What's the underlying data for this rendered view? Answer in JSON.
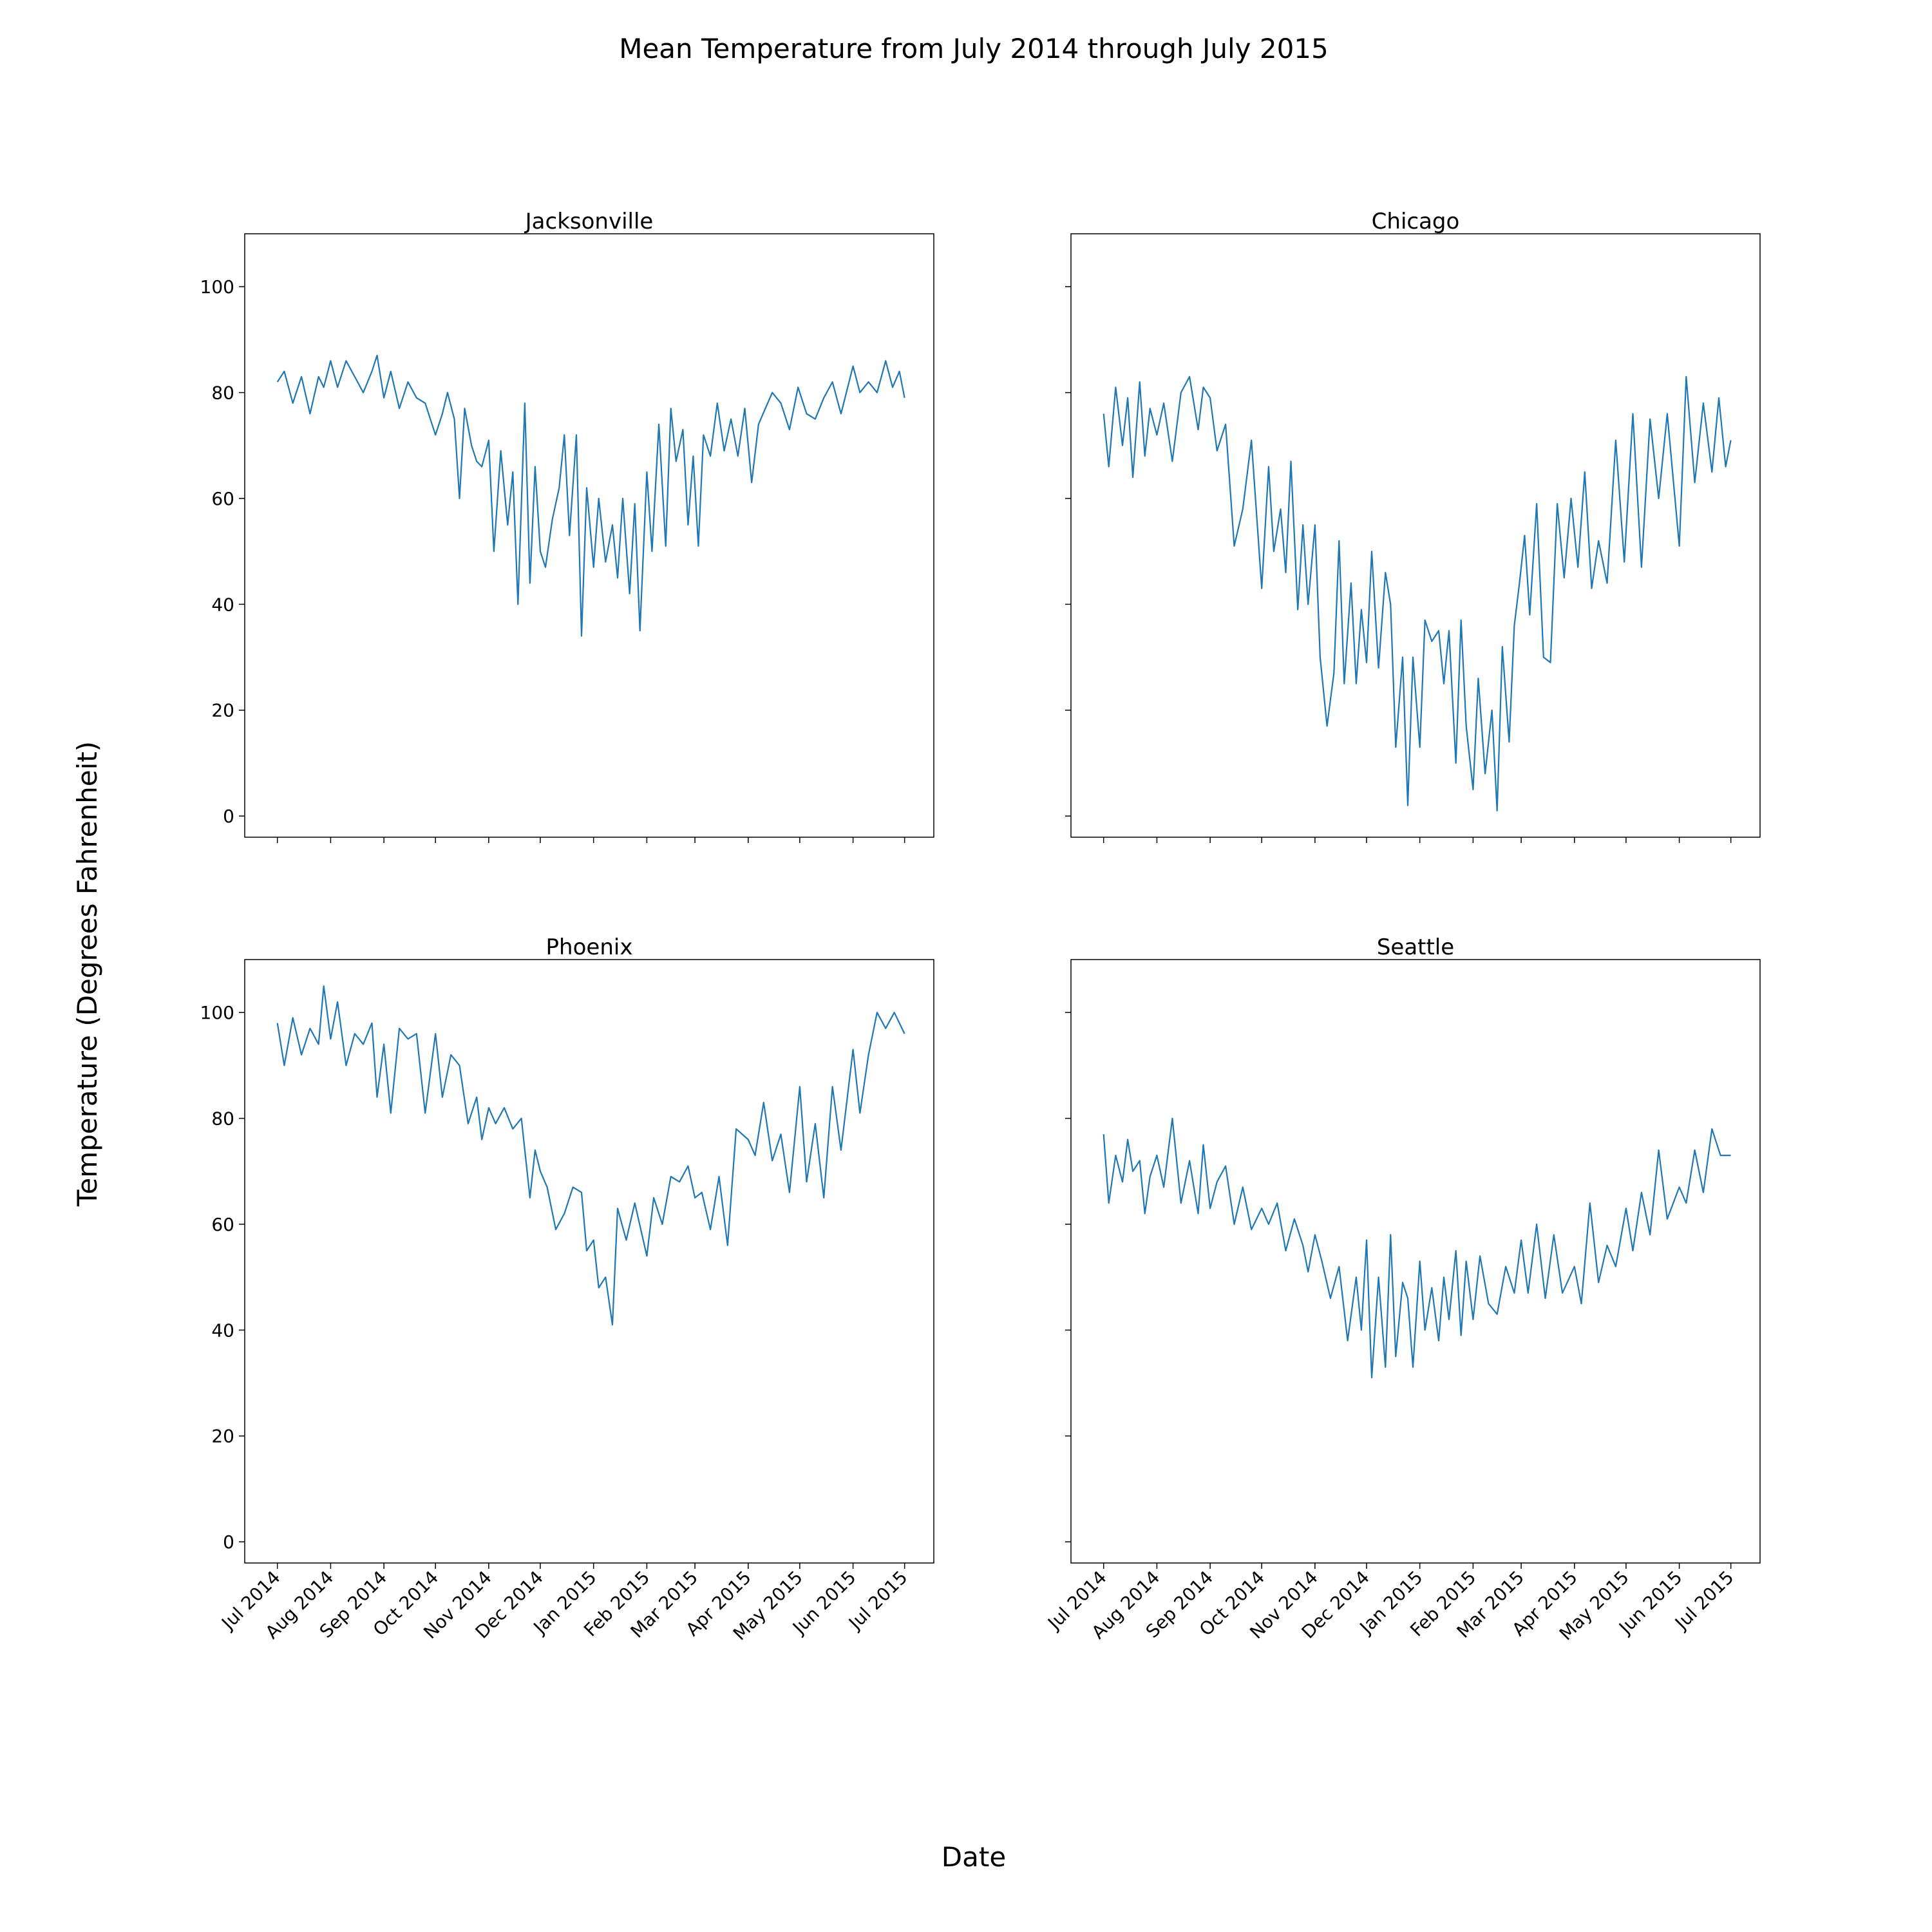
{
  "figure": {
    "title": "Mean Temperature from July 2014 through July 2015",
    "xlabel": "Date",
    "ylabel": "Temperature (Degrees Fahrenheit)"
  },
  "colors": {
    "line": "#1f77b4",
    "axes": "#000000"
  },
  "chart_data": {
    "type": "line",
    "layout": "2x2",
    "sharex": true,
    "sharey": true,
    "y_ticks": [
      0,
      20,
      40,
      60,
      80,
      100
    ],
    "ylim": [
      -4,
      110
    ],
    "xlim": [
      "2014-06-12",
      "2015-07-18"
    ],
    "x_ticks": [
      {
        "date": "2014-07-01",
        "label": "Jul 2014"
      },
      {
        "date": "2014-08-01",
        "label": "Aug 2014"
      },
      {
        "date": "2014-09-01",
        "label": "Sep 2014"
      },
      {
        "date": "2014-10-01",
        "label": "Oct 2014"
      },
      {
        "date": "2014-11-01",
        "label": "Nov 2014"
      },
      {
        "date": "2014-12-01",
        "label": "Dec 2014"
      },
      {
        "date": "2015-01-01",
        "label": "Jan 2015"
      },
      {
        "date": "2015-02-01",
        "label": "Feb 2015"
      },
      {
        "date": "2015-03-01",
        "label": "Mar 2015"
      },
      {
        "date": "2015-04-01",
        "label": "Apr 2015"
      },
      {
        "date": "2015-05-01",
        "label": "May 2015"
      },
      {
        "date": "2015-06-01",
        "label": "Jun 2015"
      },
      {
        "date": "2015-07-01",
        "label": "Jul 2015"
      }
    ],
    "panels": [
      {
        "title": "Jacksonville",
        "series": {
          "x": [
            "2014-07-01",
            "2014-07-05",
            "2014-07-10",
            "2014-07-15",
            "2014-07-20",
            "2014-07-25",
            "2014-07-28",
            "2014-08-01",
            "2014-08-05",
            "2014-08-10",
            "2014-08-15",
            "2014-08-20",
            "2014-08-25",
            "2014-08-28",
            "2014-09-01",
            "2014-09-05",
            "2014-09-10",
            "2014-09-15",
            "2014-09-20",
            "2014-09-25",
            "2014-10-01",
            "2014-10-05",
            "2014-10-08",
            "2014-10-12",
            "2014-10-15",
            "2014-10-18",
            "2014-10-22",
            "2014-10-25",
            "2014-10-28",
            "2014-11-01",
            "2014-11-04",
            "2014-11-08",
            "2014-11-12",
            "2014-11-15",
            "2014-11-18",
            "2014-11-22",
            "2014-11-25",
            "2014-11-28",
            "2014-12-01",
            "2014-12-04",
            "2014-12-08",
            "2014-12-12",
            "2014-12-15",
            "2014-12-18",
            "2014-12-22",
            "2014-12-25",
            "2014-12-28",
            "2015-01-01",
            "2015-01-04",
            "2015-01-08",
            "2015-01-12",
            "2015-01-15",
            "2015-01-18",
            "2015-01-22",
            "2015-01-25",
            "2015-01-28",
            "2015-02-01",
            "2015-02-04",
            "2015-02-08",
            "2015-02-12",
            "2015-02-15",
            "2015-02-18",
            "2015-02-22",
            "2015-02-25",
            "2015-02-28",
            "2015-03-03",
            "2015-03-06",
            "2015-03-10",
            "2015-03-14",
            "2015-03-18",
            "2015-03-22",
            "2015-03-26",
            "2015-03-30",
            "2015-04-03",
            "2015-04-07",
            "2015-04-11",
            "2015-04-15",
            "2015-04-20",
            "2015-04-25",
            "2015-04-30",
            "2015-05-05",
            "2015-05-10",
            "2015-05-15",
            "2015-05-20",
            "2015-05-25",
            "2015-06-01",
            "2015-06-05",
            "2015-06-10",
            "2015-06-15",
            "2015-06-20",
            "2015-06-24",
            "2015-06-28",
            "2015-07-01"
          ],
          "y": [
            82,
            84,
            78,
            83,
            76,
            83,
            81,
            86,
            81,
            86,
            83,
            80,
            84,
            87,
            79,
            84,
            77,
            82,
            79,
            78,
            72,
            76,
            80,
            75,
            60,
            77,
            70,
            67,
            66,
            71,
            50,
            69,
            55,
            65,
            40,
            78,
            44,
            66,
            50,
            47,
            56,
            62,
            72,
            53,
            72,
            34,
            62,
            47,
            60,
            48,
            55,
            45,
            60,
            42,
            59,
            35,
            65,
            50,
            74,
            51,
            77,
            67,
            73,
            55,
            68,
            51,
            72,
            68,
            78,
            69,
            75,
            68,
            77,
            63,
            74,
            77,
            80,
            78,
            73,
            81,
            76,
            75,
            79,
            82,
            76,
            85,
            80,
            82,
            80,
            86,
            81,
            84,
            79
          ]
        }
      },
      {
        "title": "Chicago",
        "series": {
          "x": [
            "2014-07-01",
            "2014-07-04",
            "2014-07-08",
            "2014-07-12",
            "2014-07-15",
            "2014-07-18",
            "2014-07-22",
            "2014-07-25",
            "2014-07-28",
            "2014-08-01",
            "2014-08-05",
            "2014-08-10",
            "2014-08-15",
            "2014-08-20",
            "2014-08-25",
            "2014-08-28",
            "2014-09-01",
            "2014-09-05",
            "2014-09-10",
            "2014-09-15",
            "2014-09-20",
            "2014-09-25",
            "2014-10-01",
            "2014-10-05",
            "2014-10-08",
            "2014-10-12",
            "2014-10-15",
            "2014-10-18",
            "2014-10-22",
            "2014-10-25",
            "2014-10-28",
            "2014-11-01",
            "2014-11-04",
            "2014-11-08",
            "2014-11-12",
            "2014-11-15",
            "2014-11-18",
            "2014-11-22",
            "2014-11-25",
            "2014-11-28",
            "2014-12-01",
            "2014-12-04",
            "2014-12-08",
            "2014-12-12",
            "2014-12-15",
            "2014-12-18",
            "2014-12-22",
            "2014-12-25",
            "2014-12-28",
            "2015-01-01",
            "2015-01-04",
            "2015-01-08",
            "2015-01-12",
            "2015-01-15",
            "2015-01-18",
            "2015-01-22",
            "2015-01-25",
            "2015-01-28",
            "2015-02-01",
            "2015-02-04",
            "2015-02-08",
            "2015-02-12",
            "2015-02-15",
            "2015-02-18",
            "2015-02-22",
            "2015-02-25",
            "2015-02-28",
            "2015-03-03",
            "2015-03-06",
            "2015-03-10",
            "2015-03-14",
            "2015-03-18",
            "2015-03-22",
            "2015-03-26",
            "2015-03-30",
            "2015-04-03",
            "2015-04-07",
            "2015-04-11",
            "2015-04-15",
            "2015-04-20",
            "2015-04-25",
            "2015-04-30",
            "2015-05-05",
            "2015-05-10",
            "2015-05-15",
            "2015-05-20",
            "2015-05-25",
            "2015-06-01",
            "2015-06-05",
            "2015-06-10",
            "2015-06-15",
            "2015-06-20",
            "2015-06-24",
            "2015-06-28",
            "2015-07-01"
          ],
          "y": [
            76,
            66,
            81,
            70,
            79,
            64,
            82,
            68,
            77,
            72,
            78,
            67,
            80,
            83,
            73,
            81,
            79,
            69,
            74,
            51,
            58,
            71,
            43,
            66,
            50,
            58,
            46,
            67,
            39,
            55,
            40,
            55,
            30,
            17,
            27,
            52,
            25,
            44,
            25,
            39,
            29,
            50,
            28,
            46,
            40,
            13,
            30,
            2,
            30,
            13,
            37,
            33,
            35,
            25,
            35,
            10,
            37,
            17,
            5,
            26,
            8,
            20,
            1,
            32,
            14,
            36,
            44,
            53,
            38,
            59,
            30,
            29,
            59,
            45,
            60,
            47,
            65,
            43,
            52,
            44,
            71,
            48,
            76,
            47,
            75,
            60,
            76,
            51,
            83,
            63,
            78,
            65,
            79,
            66,
            71
          ]
        }
      },
      {
        "title": "Phoenix",
        "series": {
          "x": [
            "2014-07-01",
            "2014-07-05",
            "2014-07-10",
            "2014-07-15",
            "2014-07-20",
            "2014-07-25",
            "2014-07-28",
            "2014-08-01",
            "2014-08-05",
            "2014-08-10",
            "2014-08-15",
            "2014-08-20",
            "2014-08-25",
            "2014-08-28",
            "2014-09-01",
            "2014-09-05",
            "2014-09-10",
            "2014-09-15",
            "2014-09-20",
            "2014-09-25",
            "2014-10-01",
            "2014-10-05",
            "2014-10-10",
            "2014-10-15",
            "2014-10-20",
            "2014-10-25",
            "2014-10-28",
            "2014-11-01",
            "2014-11-05",
            "2014-11-10",
            "2014-11-15",
            "2014-11-20",
            "2014-11-25",
            "2014-11-28",
            "2014-12-01",
            "2014-12-05",
            "2014-12-10",
            "2014-12-15",
            "2014-12-20",
            "2014-12-25",
            "2014-12-28",
            "2015-01-01",
            "2015-01-04",
            "2015-01-08",
            "2015-01-12",
            "2015-01-15",
            "2015-01-20",
            "2015-01-25",
            "2015-02-01",
            "2015-02-05",
            "2015-02-10",
            "2015-02-15",
            "2015-02-20",
            "2015-02-25",
            "2015-03-01",
            "2015-03-05",
            "2015-03-10",
            "2015-03-15",
            "2015-03-20",
            "2015-03-25",
            "2015-04-01",
            "2015-04-05",
            "2015-04-10",
            "2015-04-15",
            "2015-04-20",
            "2015-04-25",
            "2015-05-01",
            "2015-05-05",
            "2015-05-10",
            "2015-05-15",
            "2015-05-20",
            "2015-05-25",
            "2015-06-01",
            "2015-06-05",
            "2015-06-10",
            "2015-06-15",
            "2015-06-20",
            "2015-06-25",
            "2015-07-01"
          ],
          "y": [
            98,
            90,
            99,
            92,
            97,
            94,
            105,
            95,
            102,
            90,
            96,
            94,
            98,
            84,
            94,
            81,
            97,
            95,
            96,
            81,
            96,
            84,
            92,
            90,
            79,
            84,
            76,
            82,
            79,
            82,
            78,
            80,
            65,
            74,
            70,
            67,
            59,
            62,
            67,
            66,
            55,
            57,
            48,
            50,
            41,
            63,
            57,
            64,
            54,
            65,
            60,
            69,
            68,
            71,
            65,
            66,
            59,
            69,
            56,
            78,
            76,
            73,
            83,
            72,
            77,
            66,
            86,
            68,
            79,
            65,
            86,
            74,
            93,
            81,
            92,
            100,
            97,
            100,
            96
          ]
        }
      },
      {
        "title": "Seattle",
        "series": {
          "x": [
            "2014-07-01",
            "2014-07-04",
            "2014-07-08",
            "2014-07-12",
            "2014-07-15",
            "2014-07-18",
            "2014-07-22",
            "2014-07-25",
            "2014-07-28",
            "2014-08-01",
            "2014-08-05",
            "2014-08-10",
            "2014-08-15",
            "2014-08-20",
            "2014-08-25",
            "2014-08-28",
            "2014-09-01",
            "2014-09-05",
            "2014-09-10",
            "2014-09-15",
            "2014-09-20",
            "2014-09-25",
            "2014-10-01",
            "2014-10-05",
            "2014-10-10",
            "2014-10-15",
            "2014-10-20",
            "2014-10-25",
            "2014-10-28",
            "2014-11-01",
            "2014-11-05",
            "2014-11-10",
            "2014-11-15",
            "2014-11-20",
            "2014-11-25",
            "2014-11-28",
            "2014-12-01",
            "2014-12-04",
            "2014-12-08",
            "2014-12-12",
            "2014-12-15",
            "2014-12-18",
            "2014-12-22",
            "2014-12-25",
            "2014-12-28",
            "2015-01-01",
            "2015-01-04",
            "2015-01-08",
            "2015-01-12",
            "2015-01-15",
            "2015-01-18",
            "2015-01-22",
            "2015-01-25",
            "2015-01-28",
            "2015-02-01",
            "2015-02-05",
            "2015-02-10",
            "2015-02-15",
            "2015-02-20",
            "2015-02-25",
            "2015-03-01",
            "2015-03-05",
            "2015-03-10",
            "2015-03-15",
            "2015-03-20",
            "2015-03-25",
            "2015-04-01",
            "2015-04-05",
            "2015-04-10",
            "2015-04-15",
            "2015-04-20",
            "2015-04-25",
            "2015-05-01",
            "2015-05-05",
            "2015-05-10",
            "2015-05-15",
            "2015-05-20",
            "2015-05-25",
            "2015-06-01",
            "2015-06-05",
            "2015-06-10",
            "2015-06-15",
            "2015-06-20",
            "2015-06-25",
            "2015-07-01"
          ],
          "y": [
            77,
            64,
            73,
            68,
            76,
            70,
            72,
            62,
            69,
            73,
            67,
            80,
            64,
            72,
            62,
            75,
            63,
            68,
            71,
            60,
            67,
            59,
            63,
            60,
            64,
            55,
            61,
            56,
            51,
            58,
            53,
            46,
            52,
            38,
            50,
            40,
            57,
            31,
            50,
            33,
            58,
            35,
            49,
            46,
            33,
            53,
            40,
            48,
            38,
            50,
            42,
            55,
            39,
            53,
            42,
            54,
            45,
            43,
            52,
            47,
            57,
            47,
            60,
            46,
            58,
            47,
            52,
            45,
            64,
            49,
            56,
            52,
            63,
            55,
            66,
            58,
            74,
            61,
            67,
            64,
            74,
            66,
            78,
            73,
            73
          ]
        }
      }
    ]
  }
}
